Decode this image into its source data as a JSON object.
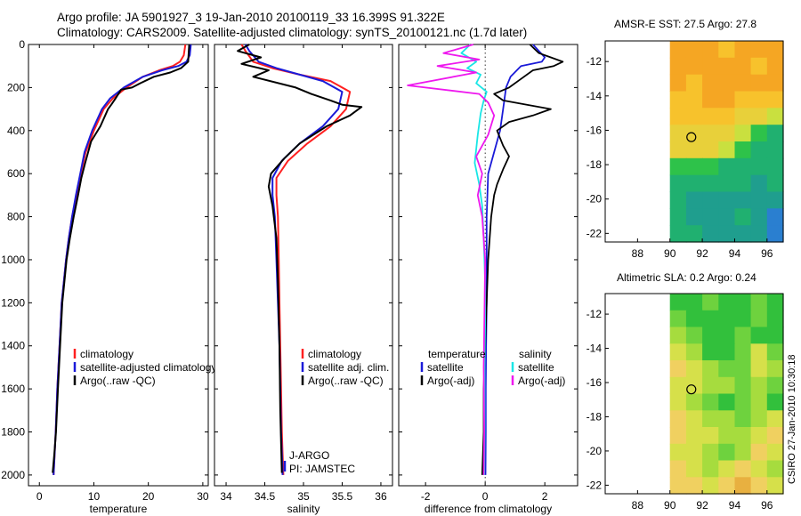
{
  "header": {
    "line1": "Argo profile: JA 5901927_3 19-Jan-2010 20100119_33 16.399S 91.322E",
    "line2": "Climatology: CARS2009. Satellite-adjusted climatology: synTS_20100121.nc (1.7d later)"
  },
  "credit": "CSIRO 27-Jan-2010 10:30:18",
  "colors": {
    "climatology": "#ff2020",
    "satellite": "#1a1ad8",
    "argo": "#000000",
    "sat_salinity": "#19e6e6",
    "argo_salinity": "#ee18ee"
  },
  "chart_data": [
    {
      "type": "line",
      "id": "temperature-profile",
      "xlabel": "temperature",
      "ylabel": "",
      "xlim": [
        -2,
        31
      ],
      "ylim": [
        2050,
        0
      ],
      "xticks": [
        0,
        10,
        20,
        30
      ],
      "yticks": [
        0,
        200,
        400,
        600,
        800,
        1000,
        1200,
        1400,
        1600,
        1800,
        2000
      ],
      "legend": {
        "placement": "bottom-left",
        "entries": [
          "climatology",
          "satellite-adjusted climatology",
          "Argo(..raw -QC)"
        ]
      },
      "series": [
        {
          "name": "climatology",
          "color": "#ff2020",
          "x": [
            26.8,
            26.5,
            25.8,
            24.5,
            22,
            19,
            16,
            13.5,
            11.8,
            10,
            8.5,
            7.6,
            6.8,
            6,
            5.4,
            4.9,
            4.5,
            4.1,
            3.7,
            3.3,
            3,
            2.8,
            2.6
          ],
          "y": [
            0,
            50,
            80,
            100,
            120,
            150,
            200,
            250,
            300,
            400,
            500,
            600,
            700,
            800,
            900,
            1000,
            1100,
            1200,
            1400,
            1600,
            1800,
            1900,
            2000
          ]
        },
        {
          "name": "satellite-adjusted climatology",
          "color": "#1a1ad8",
          "x": [
            27.8,
            27.6,
            27,
            25.5,
            22.5,
            19,
            15.5,
            13,
            11.5,
            9.7,
            8.3,
            7.5,
            6.7,
            6,
            5.4,
            4.9,
            4.5,
            4.1,
            3.7,
            3.3,
            3,
            2.8,
            2.6
          ],
          "y": [
            0,
            50,
            80,
            100,
            120,
            150,
            200,
            250,
            300,
            400,
            500,
            600,
            700,
            800,
            900,
            1000,
            1100,
            1200,
            1400,
            1600,
            1800,
            1900,
            2000
          ]
        },
        {
          "name": "Argo(..raw -QC)",
          "color": "#000000",
          "x": [
            27.5,
            27.4,
            27.3,
            26,
            24,
            21,
            18.5,
            17,
            15,
            14,
            13.2,
            12.6,
            11.2,
            9.5,
            8.4,
            7.7,
            7.1,
            6.3,
            5.6,
            5,
            4.6,
            4.2,
            3.8,
            3.4,
            3.05,
            2.75,
            2.45
          ],
          "y": [
            0,
            40,
            80,
            110,
            130,
            150,
            180,
            200,
            210,
            250,
            280,
            300,
            380,
            450,
            550,
            620,
            700,
            800,
            900,
            1000,
            1100,
            1200,
            1400,
            1600,
            1800,
            1900,
            1990
          ]
        }
      ]
    },
    {
      "type": "line",
      "id": "salinity-profile",
      "xlabel": "salinity",
      "ylabel": "",
      "xlim": [
        33.85,
        36.15
      ],
      "ylim": [
        2050,
        0
      ],
      "xticks": [
        34,
        34.5,
        35,
        35.5,
        36
      ],
      "legend": {
        "placement": "bottom-right",
        "entries": [
          "climatology",
          "satellite adj. clim.",
          "Argo(..raw -QC)"
        ]
      },
      "annotations": [
        "J-ARGO",
        "PI: JAMSTEC"
      ],
      "series": [
        {
          "name": "climatology",
          "color": "#ff2020",
          "x": [
            34.2,
            34.25,
            34.35,
            34.6,
            34.95,
            35.35,
            35.6,
            35.55,
            35.35,
            35.05,
            34.8,
            34.65,
            34.65,
            34.67,
            34.68,
            34.69,
            34.7,
            34.71,
            34.72,
            34.73,
            34.74
          ],
          "y": [
            0,
            30,
            80,
            110,
            140,
            170,
            220,
            300,
            380,
            460,
            540,
            620,
            700,
            800,
            1000,
            1200,
            1400,
            1600,
            1800,
            1900,
            2000
          ]
        },
        {
          "name": "satellite adj. clim.",
          "color": "#1a1ad8",
          "x": [
            34.25,
            34.3,
            34.42,
            34.65,
            34.95,
            35.25,
            35.5,
            35.45,
            35.25,
            34.95,
            34.72,
            34.6,
            34.6,
            34.63,
            34.65,
            34.67,
            34.69,
            34.7,
            34.71,
            34.72,
            34.73
          ],
          "y": [
            0,
            30,
            80,
            110,
            140,
            170,
            220,
            300,
            380,
            460,
            540,
            620,
            700,
            800,
            1000,
            1200,
            1400,
            1600,
            1800,
            1900,
            2000
          ]
        },
        {
          "name": "Argo(..raw -QC)",
          "color": "#000000",
          "x": [
            34.3,
            34.15,
            34.45,
            34.2,
            34.55,
            34.35,
            34.9,
            35.1,
            35.35,
            35.5,
            35.75,
            35.6,
            35.3,
            34.95,
            34.75,
            34.58,
            34.55,
            34.6,
            34.65,
            34.67,
            34.69,
            34.7,
            34.72
          ],
          "y": [
            0,
            30,
            60,
            90,
            120,
            150,
            200,
            230,
            260,
            280,
            290,
            330,
            380,
            460,
            530,
            600,
            660,
            750,
            900,
            1100,
            1400,
            1700,
            1990
          ]
        }
      ]
    },
    {
      "type": "line",
      "id": "difference-profile",
      "xlabel": "difference from climatology",
      "ylabel": "",
      "xlim": [
        -2.9,
        3.1
      ],
      "ylim": [
        2050,
        0
      ],
      "xticks": [
        -2,
        0,
        2
      ],
      "legend": {
        "placement": "bottom",
        "groups": [
          {
            "heading": "temperature",
            "entries": [
              "satellite",
              "Argo(-adj)"
            ]
          },
          {
            "heading": "salinity",
            "entries": [
              "satellite",
              "Argo(-adj)"
            ]
          }
        ]
      },
      "series": [
        {
          "name": "temperature satellite",
          "color": "#1a1ad8",
          "x": [
            1.6,
            1.8,
            2.0,
            1.9,
            1.2,
            0.85,
            0.7,
            0.6,
            0.5,
            0.3,
            0.1,
            0.05,
            0.05,
            0.05,
            0.03,
            0.02,
            0.02,
            0.01
          ],
          "y": [
            0,
            30,
            60,
            80,
            100,
            150,
            200,
            300,
            400,
            500,
            600,
            800,
            1000,
            1200,
            1400,
            1600,
            1800,
            2000
          ]
        },
        {
          "name": "temperature Argo(-adj)",
          "color": "#000000",
          "x": [
            1.5,
            1.8,
            2.2,
            2.6,
            2.3,
            1.6,
            1.2,
            0.8,
            0.3,
            0.6,
            1.4,
            2.2,
            1.6,
            0.8,
            0.4,
            0.6,
            0.8,
            0.6,
            0.4,
            0.3,
            0.2,
            0.1,
            0.05,
            0.0,
            -0.05,
            -0.05,
            -0.1
          ],
          "y": [
            0,
            40,
            60,
            80,
            100,
            120,
            160,
            200,
            230,
            260,
            280,
            300,
            330,
            360,
            400,
            470,
            520,
            580,
            650,
            700,
            800,
            1000,
            1200,
            1400,
            1600,
            1800,
            2000
          ]
        },
        {
          "name": "salinity satellite",
          "color": "#19e6e6",
          "x": [
            -0.5,
            -0.8,
            -0.3,
            -0.6,
            -0.15,
            -0.3,
            0.05,
            -0.05,
            -0.15,
            -0.25,
            -0.35,
            -0.2,
            -0.1,
            -0.05,
            0.0,
            0.0,
            -0.02,
            -0.02,
            -0.03
          ],
          "y": [
            0,
            40,
            80,
            110,
            140,
            180,
            220,
            260,
            320,
            420,
            550,
            650,
            750,
            900,
            1100,
            1300,
            1500,
            1800,
            2000
          ]
        },
        {
          "name": "salinity Argo(-adj)",
          "color": "#ee18ee",
          "x": [
            -0.4,
            -1.4,
            -0.2,
            -1.6,
            -0.3,
            -2.6,
            -0.2,
            0.1,
            0.3,
            0.1,
            -0.3,
            -0.1,
            -0.25,
            -0.1,
            0.0,
            -0.02,
            -0.05,
            -0.03,
            -0.05
          ],
          "y": [
            0,
            40,
            70,
            100,
            130,
            190,
            230,
            270,
            330,
            420,
            520,
            600,
            700,
            800,
            1000,
            1200,
            1500,
            1800,
            2000
          ]
        }
      ]
    },
    {
      "type": "heatmap",
      "id": "sst-map",
      "title": "AMSR-E SST: 27.5 Argo: 27.8",
      "xlim": [
        86,
        97
      ],
      "ylim": [
        -22.5,
        -10.8
      ],
      "xticks": [
        88,
        90,
        92,
        94,
        96
      ],
      "yticks": [
        -12,
        -14,
        -16,
        -18,
        -20,
        -22
      ],
      "data_extent_lon": [
        90,
        97
      ],
      "marker": {
        "lon": 91.322,
        "lat": -16.399
      },
      "palette": [
        "#f5a623",
        "#f7c22c",
        "#e8d03a",
        "#c9e03f",
        "#2ec24a",
        "#20b070",
        "#1f9e8e",
        "#2a7fd0"
      ],
      "rows_lat": [
        -11,
        -12,
        -13,
        -14,
        -15,
        -16,
        -17,
        -18,
        -19,
        -20,
        -21,
        -22
      ],
      "values": [
        [
          0,
          0,
          0,
          1,
          0,
          0,
          0
        ],
        [
          0,
          0,
          0,
          0,
          0,
          1,
          0
        ],
        [
          0,
          1,
          0,
          0,
          0,
          0,
          0
        ],
        [
          1,
          1,
          0,
          0,
          1,
          1,
          1
        ],
        [
          1,
          1,
          1,
          1,
          2,
          2,
          3
        ],
        [
          2,
          2,
          2,
          2,
          3,
          4,
          5
        ],
        [
          2,
          2,
          2,
          3,
          4,
          5,
          5
        ],
        [
          4,
          4,
          4,
          5,
          5,
          5,
          5
        ],
        [
          5,
          5,
          5,
          5,
          5,
          6,
          5
        ],
        [
          5,
          6,
          6,
          6,
          6,
          6,
          6
        ],
        [
          5,
          6,
          6,
          6,
          5,
          6,
          7
        ],
        [
          5,
          5,
          6,
          6,
          6,
          6,
          7
        ]
      ]
    },
    {
      "type": "heatmap",
      "id": "sla-map",
      "title": "Altimetric SLA: 0.2 Argo: 0.24",
      "xlim": [
        86,
        97
      ],
      "ylim": [
        -22.5,
        -10.8
      ],
      "xticks": [
        88,
        90,
        92,
        94,
        96
      ],
      "yticks": [
        -12,
        -14,
        -16,
        -18,
        -20,
        -22
      ],
      "data_extent_lon": [
        90,
        97
      ],
      "marker": {
        "lon": 91.322,
        "lat": -16.399
      },
      "palette": [
        "#32c03c",
        "#6ed23e",
        "#a6dc3e",
        "#d6e04a",
        "#f0d060",
        "#e8b040"
      ],
      "rows_lat": [
        -11,
        -12,
        -13,
        -14,
        -15,
        -16,
        -17,
        -18,
        -19,
        -20,
        -21,
        -22
      ],
      "values": [
        [
          0,
          0,
          1,
          0,
          0,
          1,
          0
        ],
        [
          1,
          0,
          0,
          0,
          0,
          1,
          0
        ],
        [
          2,
          1,
          0,
          0,
          1,
          0,
          0
        ],
        [
          3,
          2,
          0,
          0,
          1,
          3,
          1
        ],
        [
          4,
          3,
          2,
          1,
          1,
          3,
          2
        ],
        [
          3,
          3,
          2,
          2,
          1,
          2,
          1
        ],
        [
          3,
          2,
          1,
          0,
          1,
          2,
          0
        ],
        [
          4,
          3,
          2,
          2,
          1,
          2,
          3
        ],
        [
          4,
          3,
          3,
          2,
          2,
          3,
          4
        ],
        [
          3,
          3,
          2,
          1,
          2,
          4,
          3
        ],
        [
          4,
          3,
          2,
          3,
          4,
          3,
          2
        ],
        [
          4,
          4,
          3,
          4,
          5,
          4,
          3
        ]
      ]
    }
  ]
}
